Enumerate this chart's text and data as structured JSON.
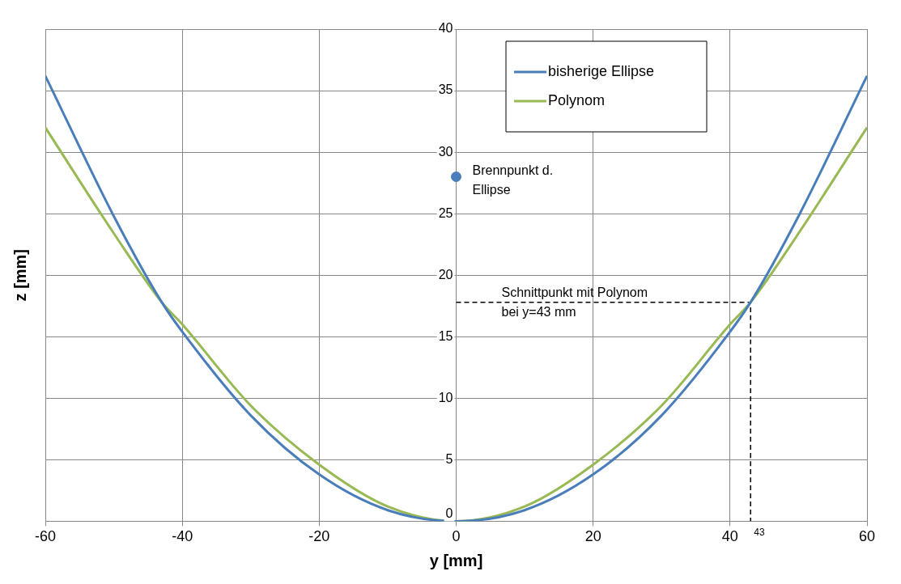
{
  "chart_data": {
    "type": "line",
    "xlabel": "y [mm]",
    "ylabel": "z [mm]",
    "xlim": [
      -60,
      60
    ],
    "xticks": [
      -60,
      -40,
      -20,
      0,
      20,
      40,
      60
    ],
    "ylim": [
      0,
      40
    ],
    "yticks": [
      0,
      5,
      10,
      15,
      20,
      25,
      30,
      35,
      40
    ],
    "grid": true,
    "legend": "top right",
    "marker": "none",
    "series": [
      {
        "name": "bisherige Ellipse",
        "color": "#4a7ebb",
        "x": [
          -60,
          -50,
          -43,
          -40,
          -30,
          -20,
          -10,
          0,
          10,
          20,
          30,
          40,
          43,
          50,
          60
        ],
        "values": [
          36.2,
          24.8,
          17.8,
          15.4,
          8.6,
          3.8,
          0.9,
          0,
          0.9,
          3.8,
          8.6,
          15.4,
          17.8,
          24.8,
          36.2
        ]
      },
      {
        "name": "Polynom",
        "color": "#98b954",
        "x": [
          -60,
          -50,
          -43,
          -40,
          -30,
          -20,
          -10,
          0,
          10,
          20,
          30,
          40,
          43,
          50,
          60
        ],
        "values": [
          32,
          23.4,
          17.8,
          16,
          9.4,
          4.6,
          1.2,
          0,
          1.2,
          4.6,
          9.4,
          16,
          17.8,
          23.4,
          32
        ]
      },
      {
        "name": "Brennpunkt d. Ellipse",
        "type": "scatter",
        "marker": "circle",
        "color": "#4a7ebb",
        "x": [
          0
        ],
        "values": [
          28
        ]
      },
      {
        "type": "line",
        "color": "#000000",
        "line_style": "dashed",
        "x": [
          0,
          43,
          43
        ],
        "values": [
          17.8,
          17.8,
          0
        ]
      }
    ],
    "annotations": [
      "Schnittpunkt mit Polynom\nbei y=43 mm",
      {
        "text": "43",
        "x": 43,
        "y": 0
      }
    ]
  }
}
